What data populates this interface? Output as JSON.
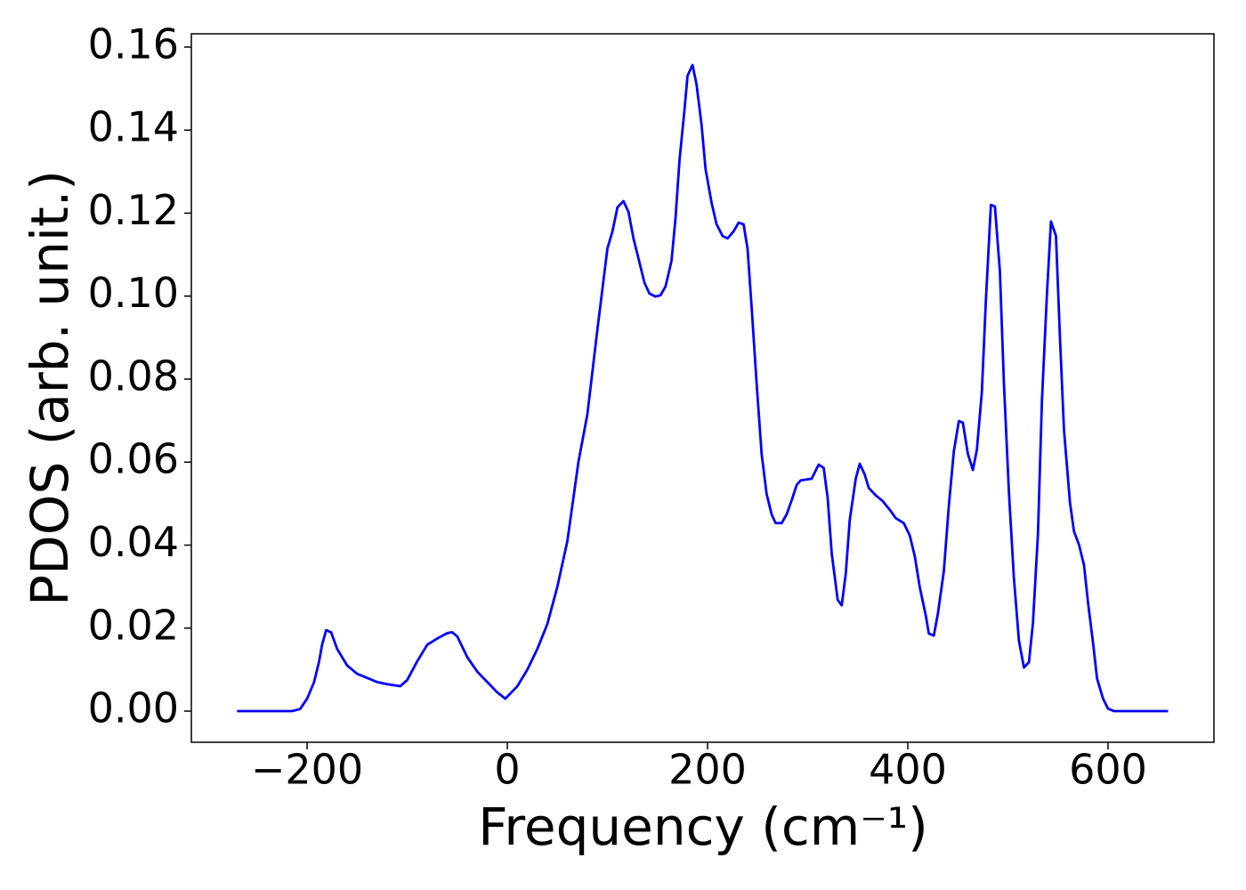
{
  "chart_data": {
    "type": "line",
    "x_label": "Frequency (cm⁻¹)",
    "y_label": "PDOS (arb. unit.)",
    "xlim": [
      -315.6,
      705.8
    ],
    "ylim": [
      -0.0075,
      0.1632
    ],
    "xticks": [
      {
        "value": -200,
        "label": "−200"
      },
      0,
      200,
      400,
      600
    ],
    "yticks": [
      {
        "value": 0,
        "label": "0.00"
      },
      0.02,
      0.04,
      0.06,
      0.08,
      {
        "value": 0.1,
        "label": "0.10"
      },
      0.12,
      0.14,
      0.16
    ],
    "grid": false,
    "series": [
      {
        "color": "#0000ff",
        "x": [
          -270,
          -250,
          -230,
          -215,
          -207,
          -200,
          -193,
          -188,
          -185,
          -181,
          -176,
          -170,
          -160,
          -150,
          -140,
          -130,
          -120,
          -107,
          -100,
          -90,
          -80,
          -70,
          -60,
          -55,
          -50,
          -40,
          -30,
          -20,
          -10,
          -2,
          10,
          20,
          30,
          40,
          50,
          60,
          71,
          80,
          90,
          100,
          105,
          110,
          116,
          121,
          126,
          132,
          137,
          142,
          148,
          153,
          158,
          164,
          168,
          172,
          177,
          180,
          185,
          189,
          194,
          198,
          204,
          209,
          215,
          220,
          226,
          231,
          236,
          240,
          244,
          249,
          254,
          259,
          264,
          268,
          274,
          279,
          284,
          289,
          293,
          304,
          311,
          316,
          320,
          324,
          330,
          334,
          338,
          342,
          348,
          352,
          357,
          361,
          368,
          375,
          382,
          388,
          396,
          402,
          407,
          412,
          418,
          421,
          426,
          430,
          436,
          441,
          446,
          451,
          455,
          460,
          465,
          469,
          474,
          478,
          483,
          487,
          492,
          496,
          501,
          506,
          511,
          516,
          521,
          525,
          530,
          534,
          539,
          543,
          548,
          552,
          556,
          562,
          566,
          571,
          576,
          580,
          585,
          589,
          595,
          600,
          606,
          630,
          660
        ],
        "values": [
          0,
          0,
          0,
          0,
          0.0005,
          0.003,
          0.007,
          0.012,
          0.016,
          0.0195,
          0.019,
          0.015,
          0.011,
          0.009,
          0.008,
          0.007,
          0.0065,
          0.006,
          0.0075,
          0.012,
          0.016,
          0.0175,
          0.0188,
          0.019,
          0.018,
          0.013,
          0.0095,
          0.007,
          0.0045,
          0.003,
          0.006,
          0.01,
          0.015,
          0.021,
          0.03,
          0.041,
          0.06,
          0.0716,
          0.092,
          0.1115,
          0.1156,
          0.1214,
          0.1229,
          0.1203,
          0.1139,
          0.1081,
          0.1032,
          0.1006,
          0.0999,
          0.1002,
          0.1023,
          0.1085,
          0.1188,
          0.1328,
          0.145,
          0.1531,
          0.1557,
          0.151,
          0.1413,
          0.1306,
          0.1225,
          0.1173,
          0.1145,
          0.1139,
          0.1156,
          0.1177,
          0.1173,
          0.1113,
          0.0974,
          0.079,
          0.062,
          0.0523,
          0.0474,
          0.0453,
          0.0453,
          0.0474,
          0.0508,
          0.0545,
          0.0556,
          0.056,
          0.0594,
          0.0586,
          0.0513,
          0.038,
          0.0268,
          0.0255,
          0.033,
          0.046,
          0.056,
          0.0596,
          0.057,
          0.0538,
          0.052,
          0.0506,
          0.0485,
          0.0465,
          0.0453,
          0.0423,
          0.0373,
          0.0298,
          0.023,
          0.0187,
          0.0182,
          0.0234,
          0.0337,
          0.0495,
          0.0626,
          0.0699,
          0.0695,
          0.062,
          0.0581,
          0.063,
          0.077,
          0.099,
          0.122,
          0.1216,
          0.106,
          0.079,
          0.0528,
          0.032,
          0.017,
          0.0105,
          0.0118,
          0.0212,
          0.0427,
          0.0749,
          0.1006,
          0.118,
          0.1145,
          0.0899,
          0.0678,
          0.0502,
          0.0433,
          0.0401,
          0.0352,
          0.0262,
          0.0165,
          0.0079,
          0.003,
          0.0006,
          0,
          0,
          0
        ]
      }
    ]
  }
}
